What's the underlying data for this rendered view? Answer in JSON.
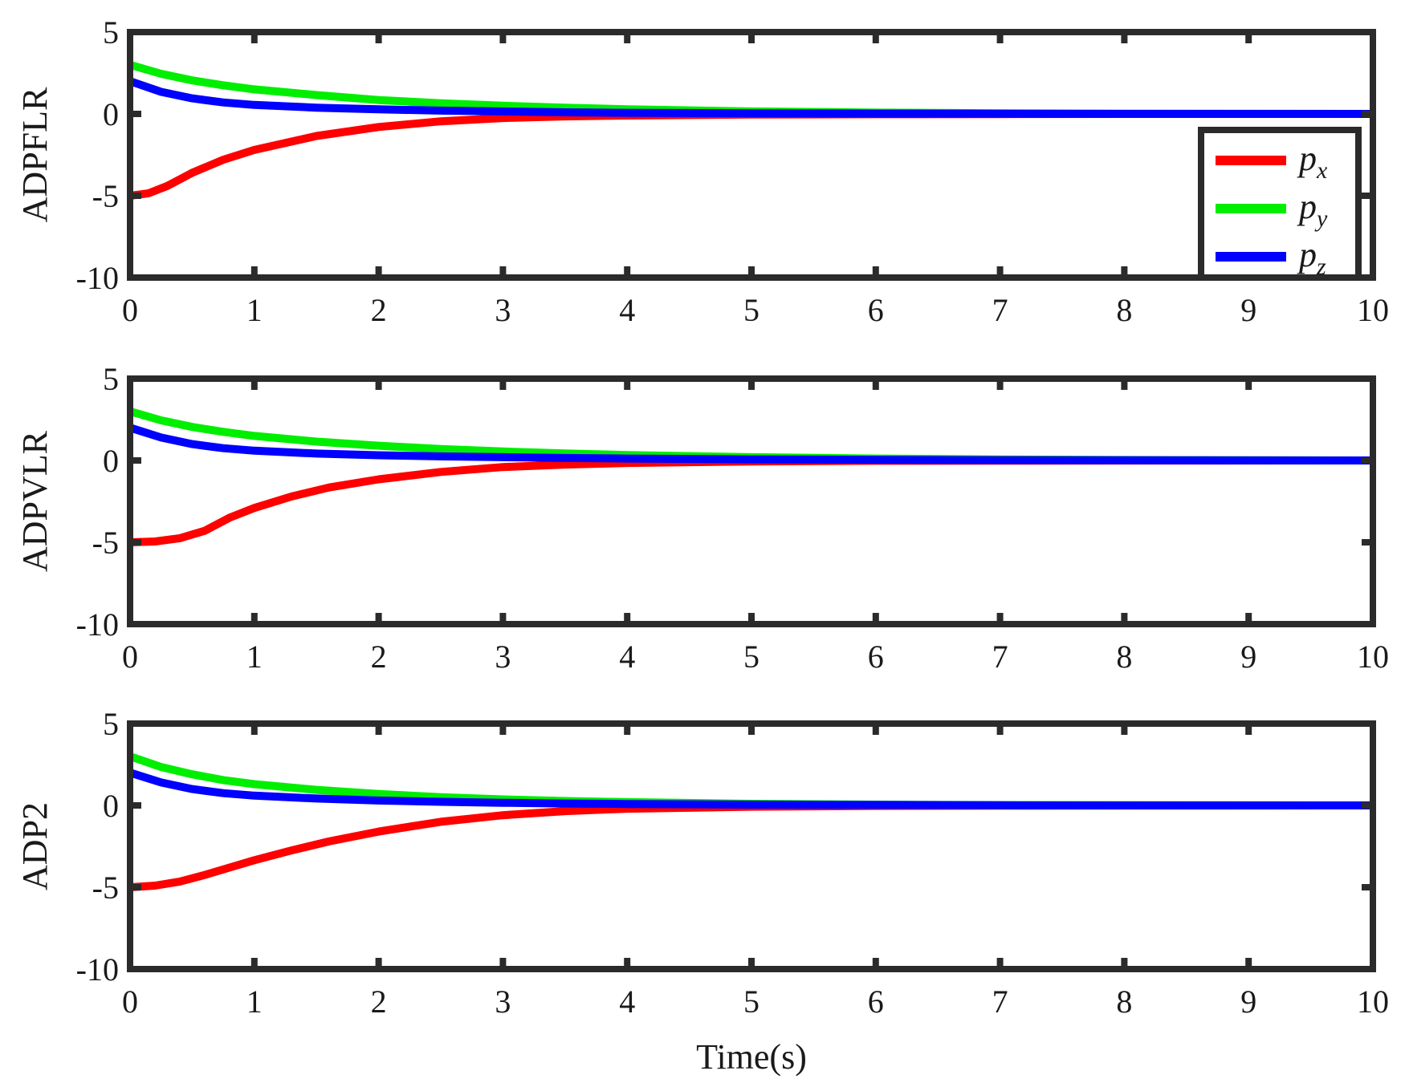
{
  "chart_data": [
    {
      "type": "line",
      "ylabel": "ADPFLR",
      "xlabel": "",
      "xlim": [
        0,
        10
      ],
      "ylim": [
        -10,
        5
      ],
      "xticks": [
        "0",
        "1",
        "2",
        "3",
        "4",
        "5",
        "6",
        "7",
        "8",
        "9",
        "10"
      ],
      "yticks": [
        "5",
        "0",
        "-5",
        "-10"
      ],
      "legend": "inside-bottom-right",
      "grid": false,
      "series": [
        {
          "name": "px",
          "color": "#ff0000",
          "x": [
            0,
            0.15,
            0.3,
            0.5,
            0.75,
            1,
            1.5,
            2,
            2.5,
            3,
            3.5,
            4,
            5,
            6,
            7,
            8,
            10
          ],
          "y": [
            -5,
            -4.85,
            -4.4,
            -3.6,
            -2.8,
            -2.2,
            -1.35,
            -0.8,
            -0.45,
            -0.25,
            -0.15,
            -0.1,
            -0.04,
            -0.02,
            -0.01,
            0,
            0
          ]
        },
        {
          "name": "py",
          "color": "#00ee00",
          "x": [
            0,
            0.25,
            0.5,
            0.75,
            1,
            1.5,
            2,
            2.5,
            3,
            3.5,
            4,
            5,
            6,
            7,
            8,
            10
          ],
          "y": [
            3,
            2.45,
            2.05,
            1.75,
            1.5,
            1.15,
            0.85,
            0.65,
            0.5,
            0.38,
            0.28,
            0.15,
            0.08,
            0.04,
            0.02,
            0
          ]
        },
        {
          "name": "pz",
          "color": "#0000ff",
          "x": [
            0,
            0.25,
            0.5,
            0.75,
            1,
            1.5,
            2,
            2.5,
            3,
            3.5,
            4,
            5,
            6,
            7,
            8,
            10
          ],
          "y": [
            2,
            1.35,
            0.95,
            0.7,
            0.55,
            0.38,
            0.28,
            0.2,
            0.15,
            0.1,
            0.07,
            0.04,
            0.02,
            0.01,
            0,
            0
          ]
        }
      ]
    },
    {
      "type": "line",
      "ylabel": "ADPVLR",
      "xlabel": "",
      "xlim": [
        0,
        10
      ],
      "ylim": [
        -10,
        5
      ],
      "xticks": [
        "0",
        "1",
        "2",
        "3",
        "4",
        "5",
        "6",
        "7",
        "8",
        "9",
        "10"
      ],
      "yticks": [
        "5",
        "0",
        "-5",
        "-10"
      ],
      "grid": false,
      "series": [
        {
          "name": "px",
          "color": "#ff0000",
          "x": [
            0,
            0.2,
            0.4,
            0.6,
            0.8,
            1,
            1.3,
            1.6,
            2,
            2.5,
            3,
            3.5,
            4,
            5,
            6,
            7,
            10
          ],
          "y": [
            -5,
            -4.95,
            -4.75,
            -4.3,
            -3.5,
            -2.9,
            -2.2,
            -1.65,
            -1.15,
            -0.7,
            -0.4,
            -0.25,
            -0.15,
            -0.06,
            -0.02,
            -0.01,
            0
          ]
        },
        {
          "name": "py",
          "color": "#00ee00",
          "x": [
            0,
            0.25,
            0.5,
            0.75,
            1,
            1.5,
            2,
            2.5,
            3,
            3.5,
            4,
            5,
            6,
            7,
            8,
            10
          ],
          "y": [
            3,
            2.45,
            2.05,
            1.75,
            1.5,
            1.15,
            0.9,
            0.7,
            0.55,
            0.43,
            0.33,
            0.2,
            0.12,
            0.06,
            0.03,
            0
          ]
        },
        {
          "name": "pz",
          "color": "#0000ff",
          "x": [
            0,
            0.25,
            0.5,
            0.75,
            1,
            1.5,
            2,
            2.5,
            3,
            3.5,
            4,
            5,
            6,
            7,
            8,
            10
          ],
          "y": [
            2,
            1.4,
            1.0,
            0.75,
            0.6,
            0.42,
            0.32,
            0.25,
            0.2,
            0.15,
            0.12,
            0.07,
            0.04,
            0.02,
            0.01,
            0
          ]
        }
      ]
    },
    {
      "type": "line",
      "ylabel": "ADP2",
      "xlabel": "Time(s)",
      "xlim": [
        0,
        10
      ],
      "ylim": [
        -10,
        5
      ],
      "xticks": [
        "0",
        "1",
        "2",
        "3",
        "4",
        "5",
        "6",
        "7",
        "8",
        "9",
        "10"
      ],
      "yticks": [
        "5",
        "0",
        "-5",
        "-10"
      ],
      "grid": false,
      "series": [
        {
          "name": "px",
          "color": "#ff0000",
          "x": [
            0,
            0.2,
            0.4,
            0.6,
            0.8,
            1,
            1.3,
            1.6,
            2,
            2.5,
            3,
            3.5,
            4,
            5,
            6,
            7,
            10
          ],
          "y": [
            -5,
            -4.9,
            -4.65,
            -4.25,
            -3.8,
            -3.35,
            -2.75,
            -2.2,
            -1.6,
            -1.0,
            -0.6,
            -0.35,
            -0.2,
            -0.08,
            -0.03,
            -0.01,
            0
          ]
        },
        {
          "name": "py",
          "color": "#00ee00",
          "x": [
            0,
            0.25,
            0.5,
            0.75,
            1,
            1.5,
            2,
            2.5,
            3,
            3.5,
            4,
            5,
            6,
            7,
            8,
            10
          ],
          "y": [
            3,
            2.35,
            1.9,
            1.55,
            1.3,
            0.95,
            0.7,
            0.5,
            0.37,
            0.27,
            0.2,
            0.1,
            0.05,
            0.02,
            0.01,
            0
          ]
        },
        {
          "name": "pz",
          "color": "#0000ff",
          "x": [
            0,
            0.25,
            0.5,
            0.75,
            1,
            1.5,
            2,
            2.5,
            3,
            3.5,
            4,
            5,
            6,
            7,
            8,
            10
          ],
          "y": [
            2,
            1.4,
            1.0,
            0.75,
            0.6,
            0.42,
            0.3,
            0.22,
            0.16,
            0.12,
            0.09,
            0.05,
            0.03,
            0.01,
            0,
            0
          ]
        }
      ]
    }
  ],
  "legend": {
    "entries": [
      {
        "base": "p",
        "sub": "x",
        "color": "#ff0000"
      },
      {
        "base": "p",
        "sub": "y",
        "color": "#00ee00"
      },
      {
        "base": "p",
        "sub": "z",
        "color": "#0000ff"
      }
    ]
  }
}
